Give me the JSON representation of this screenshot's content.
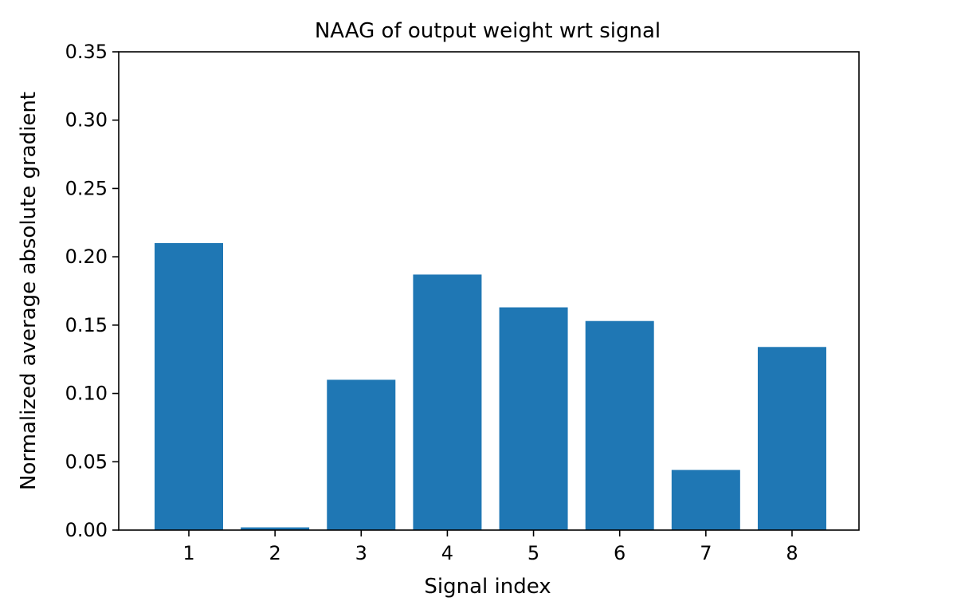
{
  "chart_data": {
    "type": "bar",
    "title": "NAAG of output weight wrt signal",
    "xlabel": "Signal index",
    "ylabel": "Normalized average absolute gradient",
    "categories": [
      "1",
      "2",
      "3",
      "4",
      "5",
      "6",
      "7",
      "8"
    ],
    "values": [
      0.21,
      0.002,
      0.11,
      0.187,
      0.163,
      0.153,
      0.044,
      0.134
    ],
    "ylim": [
      0,
      0.35
    ],
    "yticks": [
      "0.00",
      "0.05",
      "0.10",
      "0.15",
      "0.20",
      "0.25",
      "0.30",
      "0.35"
    ],
    "grid": false,
    "legend": "none",
    "bar_color": "#1f77b4"
  }
}
